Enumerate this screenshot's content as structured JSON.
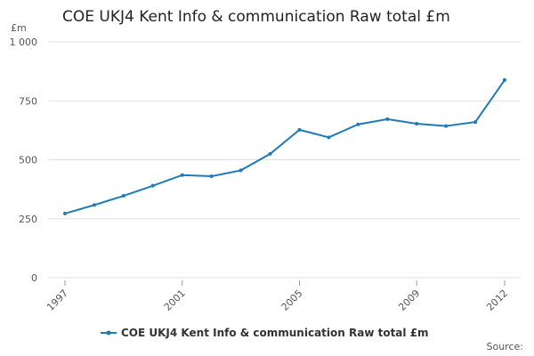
{
  "chart_data": {
    "type": "line",
    "title": "COE UKJ4 Kent Info & communication Raw total £m",
    "y_unit": "£m",
    "source": "Source:",
    "x": [
      1997,
      1998,
      1999,
      2000,
      2001,
      2002,
      2003,
      2004,
      2005,
      2006,
      2007,
      2008,
      2009,
      2010,
      2011,
      2012
    ],
    "series": [
      {
        "name": "COE UKJ4 Kent Info & communication Raw total £m",
        "color": "#1f7ab8",
        "values": [
          272,
          308,
          347,
          390,
          435,
          430,
          455,
          525,
          627,
          595,
          650,
          672,
          653,
          643,
          660,
          838
        ]
      }
    ],
    "xlim": [
      1997,
      2012
    ],
    "xticks": [
      1997,
      2001,
      2005,
      2009,
      2012
    ],
    "ylim": [
      0,
      1000
    ],
    "yticks": [
      0,
      250,
      500,
      750,
      {
        "value": 1000,
        "label": "1 000"
      }
    ],
    "grid": true
  }
}
